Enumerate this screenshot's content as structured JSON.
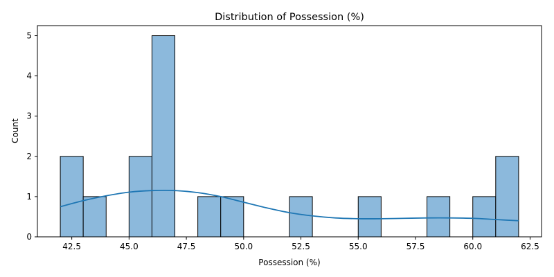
{
  "chart_data": {
    "type": "bar",
    "title": "Distribution of Possession (%)",
    "xlabel": "Possession (%)",
    "ylabel": "Count",
    "xlim": [
      41.0,
      63.0
    ],
    "ylim": [
      0,
      5.25
    ],
    "x_ticks": [
      "42.5",
      "45.0",
      "47.5",
      "50.0",
      "52.5",
      "55.0",
      "57.5",
      "60.0",
      "62.5"
    ],
    "y_ticks": [
      "0",
      "1",
      "2",
      "3",
      "4",
      "5"
    ],
    "bins": [
      {
        "start": 42.0,
        "end": 43.0,
        "count": 2
      },
      {
        "start": 43.0,
        "end": 44.0,
        "count": 1
      },
      {
        "start": 44.0,
        "end": 45.0,
        "count": 0
      },
      {
        "start": 45.0,
        "end": 46.0,
        "count": 2
      },
      {
        "start": 46.0,
        "end": 47.0,
        "count": 5
      },
      {
        "start": 47.0,
        "end": 48.0,
        "count": 0
      },
      {
        "start": 48.0,
        "end": 49.0,
        "count": 1
      },
      {
        "start": 49.0,
        "end": 50.0,
        "count": 1
      },
      {
        "start": 50.0,
        "end": 51.0,
        "count": 0
      },
      {
        "start": 51.0,
        "end": 52.0,
        "count": 0
      },
      {
        "start": 52.0,
        "end": 53.0,
        "count": 1
      },
      {
        "start": 53.0,
        "end": 54.0,
        "count": 0
      },
      {
        "start": 54.0,
        "end": 55.0,
        "count": 0
      },
      {
        "start": 55.0,
        "end": 56.0,
        "count": 1
      },
      {
        "start": 56.0,
        "end": 57.0,
        "count": 0
      },
      {
        "start": 57.0,
        "end": 58.0,
        "count": 0
      },
      {
        "start": 58.0,
        "end": 59.0,
        "count": 1
      },
      {
        "start": 59.0,
        "end": 60.0,
        "count": 0
      },
      {
        "start": 60.0,
        "end": 61.0,
        "count": 1
      },
      {
        "start": 61.0,
        "end": 62.0,
        "count": 2
      }
    ],
    "kde": {
      "x": [
        42.0,
        43.0,
        44.0,
        45.0,
        46.0,
        47.0,
        48.0,
        49.0,
        50.0,
        51.0,
        52.0,
        53.0,
        54.0,
        55.0,
        56.0,
        57.0,
        58.0,
        59.0,
        60.0,
        61.0,
        62.0
      ],
      "y": [
        0.75,
        0.9,
        1.02,
        1.11,
        1.15,
        1.15,
        1.1,
        1.0,
        0.86,
        0.72,
        0.6,
        0.52,
        0.47,
        0.45,
        0.45,
        0.46,
        0.47,
        0.47,
        0.46,
        0.43,
        0.4
      ]
    },
    "colors": {
      "bar_fill": "#8cb9dc",
      "bar_edge": "#000000",
      "kde_line": "#1f77b4"
    },
    "grid": false,
    "legend": "none"
  }
}
